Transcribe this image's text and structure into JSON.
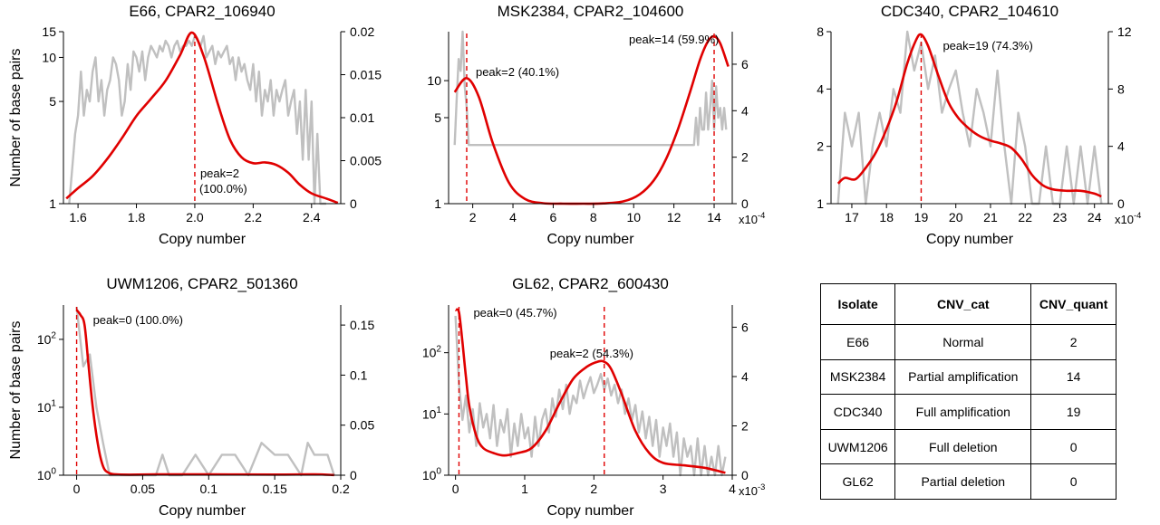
{
  "colors": {
    "histogram": "#c0c0c0",
    "density": "#e00000",
    "peak_line": "#e00000"
  },
  "chart_data": [
    {
      "type": "line",
      "title": "E66, CPAR2_106940",
      "xlabel": "Copy number",
      "ylabel": "Number of base pairs",
      "xlim": [
        1.55,
        2.5
      ],
      "xticks": [
        1.6,
        1.8,
        2.0,
        2.2,
        2.4
      ],
      "xtick_labels": [
        "1.6",
        "1.8",
        "2.0",
        "2.2",
        "2.4"
      ],
      "y_left_scale": "log",
      "y_left_ticks": [
        1,
        5,
        10,
        15
      ],
      "y_left_tick_labels": [
        "1",
        "5",
        "10",
        "15"
      ],
      "y_right_ticks": [
        0,
        0.005,
        0.01,
        0.015,
        0.02
      ],
      "y_right_tick_labels": [
        "0",
        "0.005",
        "0.01",
        "0.015",
        "0.02"
      ],
      "series": [
        {
          "role": "histogram",
          "x": [
            1.57,
            1.59,
            1.6,
            1.61,
            1.62,
            1.63,
            1.64,
            1.65,
            1.66,
            1.67,
            1.68,
            1.69,
            1.7,
            1.71,
            1.72,
            1.73,
            1.74,
            1.75,
            1.76,
            1.77,
            1.78,
            1.79,
            1.8,
            1.81,
            1.82,
            1.83,
            1.84,
            1.85,
            1.86,
            1.87,
            1.88,
            1.89,
            1.9,
            1.91,
            1.92,
            1.93,
            1.94,
            1.95,
            1.96,
            1.97,
            1.98,
            1.99,
            2.0,
            2.01,
            2.02,
            2.03,
            2.04,
            2.05,
            2.06,
            2.07,
            2.08,
            2.09,
            2.1,
            2.11,
            2.12,
            2.13,
            2.14,
            2.15,
            2.16,
            2.17,
            2.18,
            2.19,
            2.2,
            2.21,
            2.22,
            2.23,
            2.24,
            2.25,
            2.26,
            2.27,
            2.28,
            2.29,
            2.3,
            2.31,
            2.32,
            2.33,
            2.34,
            2.35,
            2.36,
            2.37,
            2.38,
            2.39,
            2.4,
            2.41,
            2.42,
            2.43,
            2.44,
            2.45
          ],
          "y": [
            1,
            3,
            4,
            8,
            4,
            6,
            5,
            8,
            10,
            5,
            7,
            4,
            6,
            7,
            10,
            9,
            7,
            4,
            5,
            9,
            6,
            11,
            10,
            8,
            11,
            7,
            10,
            12,
            11,
            10,
            12,
            11,
            13,
            12,
            10,
            12,
            13,
            11,
            12,
            12,
            13,
            12,
            14,
            13,
            12,
            14,
            10,
            11,
            12,
            9,
            11,
            10,
            11,
            12,
            9,
            10,
            7,
            10,
            8,
            9,
            7,
            6,
            9,
            5,
            8,
            4,
            6,
            5,
            7,
            4,
            6,
            5,
            6,
            7,
            4,
            5,
            6,
            3,
            5,
            2,
            6,
            2,
            5,
            1,
            3,
            1,
            1,
            1
          ]
        },
        {
          "role": "density",
          "x": [
            1.56,
            1.6,
            1.65,
            1.7,
            1.75,
            1.8,
            1.85,
            1.9,
            1.95,
            1.99,
            2.03,
            2.08,
            2.12,
            2.16,
            2.2,
            2.24,
            2.28,
            2.32,
            2.36,
            2.4,
            2.45,
            2.49
          ],
          "y": [
            0.0006,
            0.0018,
            0.0032,
            0.0052,
            0.0076,
            0.0102,
            0.0122,
            0.0143,
            0.0173,
            0.0199,
            0.0172,
            0.0115,
            0.0075,
            0.0054,
            0.0047,
            0.0048,
            0.0045,
            0.0036,
            0.0022,
            0.0012,
            0.0006,
            0.0001
          ]
        }
      ],
      "peaks": [
        {
          "x": 2.0,
          "label": "peak=2",
          "pct": "(100.0%)"
        }
      ]
    },
    {
      "type": "line",
      "title": "MSK2384, CPAR2_104600",
      "xlabel": "Copy number",
      "xlim": [
        0.8,
        14.9
      ],
      "xticks": [
        2,
        4,
        6,
        8,
        10,
        12,
        14
      ],
      "xtick_labels": [
        "2",
        "4",
        "6",
        "8",
        "10",
        "12",
        "14"
      ],
      "y_left_scale": "log",
      "y_left_ticks": [
        1,
        5,
        10
      ],
      "y_left_tick_labels": [
        "1",
        "5",
        "10"
      ],
      "y_right_ticks": [
        0,
        2,
        4,
        6
      ],
      "y_right_tick_labels": [
        "0",
        "2",
        "4",
        "6"
      ],
      "y_right_scale_label": "x10",
      "y_right_scale_exp": "-4",
      "series": [
        {
          "role": "histogram",
          "x": [
            1.1,
            1.2,
            1.3,
            1.4,
            1.5,
            1.6,
            1.7,
            1.8,
            13.0,
            13.1,
            13.2,
            13.3,
            13.4,
            13.5,
            13.6,
            13.7,
            13.8,
            13.9,
            14.0,
            14.1,
            14.2,
            14.3,
            14.4,
            14.5,
            14.6
          ],
          "y": [
            3,
            7,
            15,
            12,
            25,
            9,
            6,
            3,
            3,
            5,
            3,
            6,
            4,
            4,
            8,
            4,
            6,
            10,
            4,
            9,
            5,
            6,
            4,
            6,
            4
          ]
        },
        {
          "role": "density",
          "x": [
            1.1,
            1.7,
            2.3,
            3,
            3.8,
            4.6,
            5.5,
            6.5,
            7.5,
            8.5,
            9.5,
            10.3,
            11,
            11.6,
            12.2,
            12.8,
            13.3,
            13.7,
            14.0,
            14.3,
            14.7
          ],
          "y": [
            4.8,
            5.4,
            4.6,
            2.6,
            0.9,
            0.2,
            0.02,
            0,
            0,
            0.01,
            0.1,
            0.4,
            1.0,
            1.9,
            3.2,
            4.8,
            6.2,
            7.0,
            7.2,
            6.9,
            5.9
          ]
        }
      ],
      "peaks": [
        {
          "x": 1.7,
          "label": "peak=2 (40.1%)"
        },
        {
          "x": 14.0,
          "label": "peak=14 (59.9%)"
        }
      ]
    },
    {
      "type": "line",
      "title": "CDC340, CPAR2_104610",
      "xlabel": "Copy number",
      "xlim": [
        16.4,
        24.4
      ],
      "xticks": [
        17,
        18,
        19,
        20,
        21,
        22,
        23,
        24
      ],
      "xtick_labels": [
        "17",
        "18",
        "19",
        "20",
        "21",
        "22",
        "23",
        "24"
      ],
      "y_left_scale": "log",
      "y_left_ticks": [
        1,
        2,
        4,
        8
      ],
      "y_left_tick_labels": [
        "1",
        "2",
        "4",
        "8"
      ],
      "y_right_ticks": [
        0,
        4,
        8,
        12
      ],
      "y_right_tick_labels": [
        "0",
        "4",
        "8",
        "12"
      ],
      "y_right_scale_label": "x10",
      "y_right_scale_exp": "-4",
      "series": [
        {
          "role": "histogram",
          "x": [
            16.6,
            16.8,
            17.0,
            17.2,
            17.4,
            17.6,
            17.8,
            18.0,
            18.2,
            18.4,
            18.6,
            18.8,
            19.0,
            19.2,
            19.4,
            19.6,
            19.8,
            20.0,
            20.2,
            20.4,
            20.6,
            20.8,
            21.0,
            21.2,
            21.4,
            21.6,
            21.8,
            22.0,
            22.2,
            22.4,
            22.6,
            22.8,
            23.0,
            23.2,
            23.4,
            23.6,
            23.8,
            24.0,
            24.2
          ],
          "y": [
            1,
            3,
            2,
            3,
            1,
            2,
            3,
            2,
            4,
            3,
            8,
            5,
            7,
            4,
            6,
            3,
            4,
            5,
            3,
            2,
            4,
            3,
            2,
            5,
            2,
            1,
            3,
            2,
            1,
            1,
            2,
            1,
            1,
            2,
            1,
            2,
            1,
            2,
            1
          ]
        },
        {
          "role": "density",
          "x": [
            16.6,
            16.8,
            17.1,
            17.4,
            17.7,
            18.0,
            18.3,
            18.6,
            18.85,
            19.0,
            19.2,
            19.5,
            19.8,
            20.1,
            20.4,
            20.7,
            21.0,
            21.3,
            21.6,
            21.9,
            22.2,
            22.5,
            22.8,
            23.2,
            23.6,
            24.0,
            24.2
          ],
          "y": [
            1.4,
            1.8,
            1.7,
            2.5,
            3.6,
            5.2,
            7.2,
            9.8,
            11.4,
            11.8,
            11.0,
            8.9,
            7.0,
            5.9,
            5.2,
            4.7,
            4.4,
            4.2,
            3.9,
            3.1,
            2.0,
            1.3,
            1.0,
            0.9,
            0.9,
            0.7,
            0.5
          ]
        }
      ],
      "peaks": [
        {
          "x": 19.0,
          "label": "peak=19 (74.3%)"
        }
      ]
    },
    {
      "type": "line",
      "title": "UWM1206, CPAR2_501360",
      "xlabel": "Copy number",
      "ylabel": "Number of base pairs",
      "xlim": [
        -0.01,
        0.2
      ],
      "xticks": [
        0,
        0.05,
        0.1,
        0.15,
        0.2
      ],
      "xtick_labels": [
        "0",
        "0.05",
        "0.1",
        "0.15",
        "0.2"
      ],
      "y_left_scale": "log",
      "y_left_ticks": [
        1,
        10,
        100
      ],
      "y_left_tick_labels_base": [
        "10",
        "10",
        "10"
      ],
      "y_left_tick_labels_exp": [
        "0",
        "1",
        "2"
      ],
      "y_right_ticks": [
        0,
        0.05,
        0.1,
        0.15
      ],
      "y_right_tick_labels": [
        "0",
        "0.05",
        "0.1",
        "0.15"
      ],
      "series": [
        {
          "role": "histogram",
          "x": [
            0,
            0.005,
            0.01,
            0.015,
            0.02,
            0.025,
            0.03,
            0.04,
            0.05,
            0.06,
            0.065,
            0.07,
            0.08,
            0.09,
            0.1,
            0.11,
            0.12,
            0.13,
            0.14,
            0.15,
            0.16,
            0.17,
            0.175,
            0.18,
            0.19,
            0.195
          ],
          "y": [
            300,
            40,
            60,
            10,
            3,
            1,
            1,
            1,
            1,
            1,
            2,
            1,
            1,
            2,
            1,
            2,
            2,
            1,
            3,
            2,
            2,
            1,
            3,
            2,
            2,
            1
          ]
        },
        {
          "role": "density",
          "x": [
            0,
            0.003,
            0.006,
            0.009,
            0.012,
            0.015,
            0.018,
            0.021,
            0.025,
            0.03,
            0.04,
            0.06,
            0.1,
            0.15,
            0.18,
            0.195
          ],
          "y": [
            0.165,
            0.16,
            0.15,
            0.11,
            0.07,
            0.04,
            0.018,
            0.006,
            0.002,
            0.0008,
            0.0005,
            0.0008,
            0.0008,
            0.0006,
            0.0008,
            0.0002
          ]
        }
      ],
      "peaks": [
        {
          "x": 0,
          "label": "peak=0 (100.0%)"
        }
      ]
    },
    {
      "type": "line",
      "title": "GL62, CPAR2_600430",
      "xlabel": "Copy number",
      "xlim": [
        -0.1,
        4.0
      ],
      "xticks": [
        0,
        1,
        2,
        3,
        4
      ],
      "xtick_labels": [
        "0",
        "1",
        "2",
        "3",
        "4"
      ],
      "y_left_scale": "log",
      "y_left_ticks": [
        1,
        10,
        100
      ],
      "y_left_tick_labels_base": [
        "10",
        "10",
        "10"
      ],
      "y_left_tick_labels_exp": [
        "0",
        "1",
        "2"
      ],
      "y_right_ticks": [
        0,
        2,
        4,
        6
      ],
      "y_right_tick_labels": [
        "0",
        "2",
        "4",
        "6"
      ],
      "y_right_scale_label": "x10",
      "y_right_scale_exp": "-3",
      "series": [
        {
          "role": "histogram",
          "x": [
            0,
            0.05,
            0.1,
            0.15,
            0.2,
            0.25,
            0.3,
            0.35,
            0.4,
            0.45,
            0.5,
            0.55,
            0.6,
            0.65,
            0.7,
            0.75,
            0.8,
            0.85,
            0.9,
            0.95,
            1.0,
            1.05,
            1.1,
            1.15,
            1.2,
            1.25,
            1.3,
            1.35,
            1.4,
            1.45,
            1.5,
            1.55,
            1.6,
            1.65,
            1.7,
            1.75,
            1.8,
            1.85,
            1.9,
            1.95,
            2.0,
            2.05,
            2.1,
            2.15,
            2.2,
            2.25,
            2.3,
            2.35,
            2.4,
            2.45,
            2.5,
            2.55,
            2.6,
            2.65,
            2.7,
            2.75,
            2.8,
            2.85,
            2.9,
            2.95,
            3.0,
            3.05,
            3.1,
            3.15,
            3.2,
            3.25,
            3.3,
            3.35,
            3.4,
            3.45,
            3.5,
            3.55,
            3.6,
            3.65,
            3.7,
            3.75,
            3.8,
            3.85,
            3.9
          ],
          "y": [
            400,
            30,
            8,
            20,
            5,
            12,
            3,
            15,
            6,
            10,
            4,
            14,
            3,
            8,
            5,
            12,
            2,
            7,
            3,
            10,
            4,
            6,
            2,
            9,
            3,
            8,
            12,
            5,
            18,
            9,
            25,
            12,
            30,
            10,
            20,
            15,
            35,
            18,
            28,
            40,
            22,
            30,
            45,
            25,
            38,
            20,
            30,
            15,
            25,
            10,
            18,
            8,
            14,
            5,
            11,
            4,
            9,
            3,
            8,
            2,
            6,
            3,
            7,
            2,
            5,
            1,
            4,
            2,
            3,
            1,
            4,
            1,
            3,
            1,
            2,
            1,
            3,
            1,
            2
          ]
        },
        {
          "role": "density",
          "x": [
            0,
            0.05,
            0.1,
            0.15,
            0.2,
            0.3,
            0.4,
            0.55,
            0.7,
            0.9,
            1.1,
            1.3,
            1.5,
            1.7,
            1.9,
            2.05,
            2.15,
            2.25,
            2.4,
            2.6,
            2.8,
            3.0,
            3.3,
            3.6,
            3.9
          ],
          "y": [
            6.7,
            6.6,
            5.4,
            4.0,
            2.8,
            1.6,
            1.1,
            0.9,
            0.8,
            0.9,
            1.1,
            1.8,
            2.9,
            3.9,
            4.4,
            4.6,
            4.6,
            4.3,
            3.3,
            1.8,
            0.9,
            0.5,
            0.4,
            0.3,
            0.1
          ]
        }
      ],
      "peaks": [
        {
          "x": 0.05,
          "label": "peak=0 (45.7%)"
        },
        {
          "x": 2.15,
          "label": "peak=2 (54.3%)"
        }
      ]
    },
    {
      "type": "table",
      "columns": [
        "Isolate",
        "CNV_cat",
        "CNV_quant"
      ],
      "rows": [
        [
          "E66",
          "Normal",
          "2"
        ],
        [
          "MSK2384",
          "Partial amplification",
          "14"
        ],
        [
          "CDC340",
          "Full amplification",
          "19"
        ],
        [
          "UWM1206",
          "Full deletion",
          "0"
        ],
        [
          "GL62",
          "Partial deletion",
          "0"
        ]
      ]
    }
  ]
}
